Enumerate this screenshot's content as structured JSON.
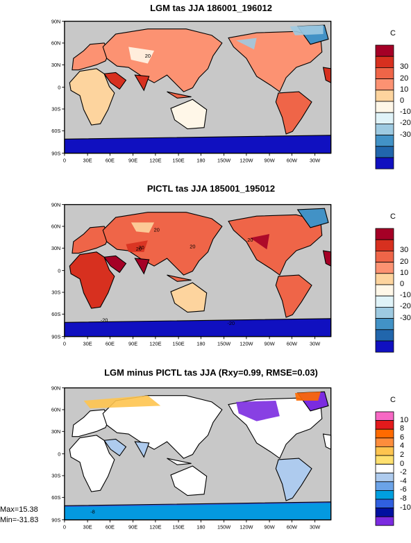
{
  "panels": [
    {
      "title": "LGM tas JJA 186001_196012",
      "unit": "C",
      "levels": [
        "30",
        "20",
        "10",
        "0",
        "-10",
        "-20",
        "-30"
      ],
      "colors": [
        "#a50026",
        "#d7301f",
        "#ef6548",
        "#fc9272",
        "#fdd49e",
        "#fff7e8",
        "#e0f3f8",
        "#9ecae1",
        "#4292c6",
        "#2166ac",
        "#1010c0"
      ]
    },
    {
      "title": "PICTL tas JJA 185001_195012",
      "unit": "C",
      "levels": [
        "30",
        "20",
        "10",
        "0",
        "-10",
        "-20",
        "-30"
      ],
      "colors": [
        "#a50026",
        "#d7301f",
        "#ef6548",
        "#fc9272",
        "#fdd49e",
        "#fff7e8",
        "#e0f3f8",
        "#9ecae1",
        "#4292c6",
        "#2166ac",
        "#1010c0"
      ]
    },
    {
      "title": "LGM minus PICTL tas JJA (Rxy=0.99, RMSE=0.03)",
      "unit": "C",
      "levels": [
        "10",
        "8",
        "6",
        "4",
        "2",
        "0",
        "-2",
        "-4",
        "-6",
        "-8",
        "-10"
      ],
      "colors": [
        "#f768c4",
        "#e31a1c",
        "#ff6a00",
        "#fd8d3c",
        "#fec44f",
        "#ffe070",
        "#ffffff",
        "#aecbee",
        "#6ba3e8",
        "#00a0e0",
        "#3060e0",
        "#0010a0",
        "#7b2be0"
      ]
    }
  ],
  "lat_labels": [
    "90N",
    "60N",
    "30N",
    "0",
    "30S",
    "60S",
    "90S"
  ],
  "lon_labels": [
    "0",
    "30E",
    "60E",
    "90E",
    "120E",
    "150E",
    "180",
    "150W",
    "120W",
    "90W",
    "60W",
    "30W"
  ],
  "contour_labels": {
    "p0": [
      "20"
    ],
    "p1": [
      "20",
      "20",
      "20",
      "20",
      "20",
      "-20",
      "-20"
    ],
    "p2": [
      "-8"
    ]
  },
  "stats": {
    "max": "Max=15.38",
    "min": "Min=-31.83"
  },
  "colors": {
    "ocean": "#c8c8c8",
    "coast": "#000000"
  },
  "chart_data": [
    {
      "type": "heatmap",
      "title": "LGM tas JJA 186001_196012",
      "x_axis": [
        "0",
        "30E",
        "60E",
        "90E",
        "120E",
        "150E",
        "180",
        "150W",
        "120W",
        "90W",
        "60W",
        "30W"
      ],
      "y_axis": [
        "90N",
        "60N",
        "30N",
        "0",
        "30S",
        "60S",
        "90S"
      ],
      "colorbar_label": "C",
      "colorbar_levels": [
        30,
        20,
        10,
        0,
        -10,
        -20,
        -30
      ]
    },
    {
      "type": "heatmap",
      "title": "PICTL tas JJA 185001_195012",
      "x_axis": [
        "0",
        "30E",
        "60E",
        "90E",
        "120E",
        "150E",
        "180",
        "150W",
        "120W",
        "90W",
        "60W",
        "30W"
      ],
      "y_axis": [
        "90N",
        "60N",
        "30N",
        "0",
        "30S",
        "60S",
        "90S"
      ],
      "colorbar_label": "C",
      "colorbar_levels": [
        30,
        20,
        10,
        0,
        -10,
        -20,
        -30
      ]
    },
    {
      "type": "heatmap",
      "title": "LGM minus PICTL tas JJA (Rxy=0.99, RMSE=0.03)",
      "x_axis": [
        "0",
        "30E",
        "60E",
        "90E",
        "120E",
        "150E",
        "180",
        "150W",
        "120W",
        "90W",
        "60W",
        "30W"
      ],
      "y_axis": [
        "90N",
        "60N",
        "30N",
        "0",
        "30S",
        "60S",
        "90S"
      ],
      "colorbar_label": "C",
      "colorbar_levels": [
        10,
        8,
        6,
        4,
        2,
        0,
        -2,
        -4,
        -6,
        -8,
        -10
      ],
      "max": 15.38,
      "min": -31.83
    }
  ]
}
